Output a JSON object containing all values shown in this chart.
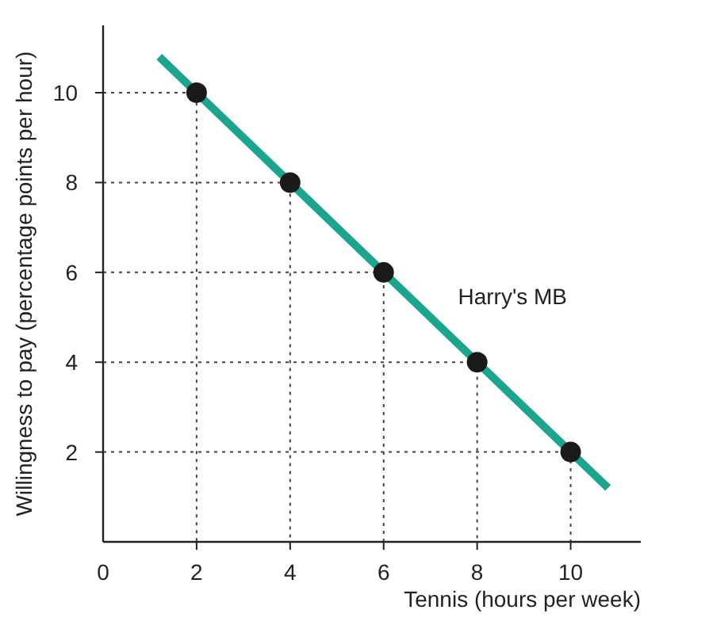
{
  "chart_data": {
    "type": "line",
    "xlabel": "Tennis (hours per week)",
    "ylabel": "Willingness to pay (percentage points per hour)",
    "xlim": [
      0,
      11.5
    ],
    "ylim": [
      0,
      11.5
    ],
    "xticks": [
      0,
      2,
      4,
      6,
      8,
      10
    ],
    "yticks": [
      2,
      4,
      6,
      8,
      10
    ],
    "series": [
      {
        "color": "#1aa58c",
        "x": [
          1.2,
          10.8
        ],
        "values": [
          10.8,
          1.2
        ],
        "marker": "none",
        "line_style": "solid"
      },
      {
        "color": "#444444",
        "x": [
          0,
          2,
          2
        ],
        "values": [
          10,
          10,
          0
        ],
        "marker": "none",
        "line_style": "dotted"
      },
      {
        "color": "#444444",
        "x": [
          0,
          4,
          4
        ],
        "values": [
          8,
          8,
          0
        ],
        "marker": "none",
        "line_style": "dotted"
      },
      {
        "color": "#444444",
        "x": [
          0,
          6,
          6
        ],
        "values": [
          6,
          6,
          0
        ],
        "marker": "none",
        "line_style": "dotted"
      },
      {
        "color": "#444444",
        "x": [
          0,
          8,
          8
        ],
        "values": [
          4,
          4,
          0
        ],
        "marker": "none",
        "line_style": "dotted"
      },
      {
        "color": "#444444",
        "x": [
          0,
          10,
          10
        ],
        "values": [
          2,
          2,
          0
        ],
        "marker": "none",
        "line_style": "dotted"
      },
      {
        "type": "scatter",
        "color": "#1a1a1a",
        "x": [
          2,
          4,
          6,
          8,
          10
        ],
        "values": [
          10,
          8,
          6,
          4,
          2
        ],
        "marker": "circle"
      }
    ],
    "annotations": [
      "Harry's MB"
    ]
  }
}
